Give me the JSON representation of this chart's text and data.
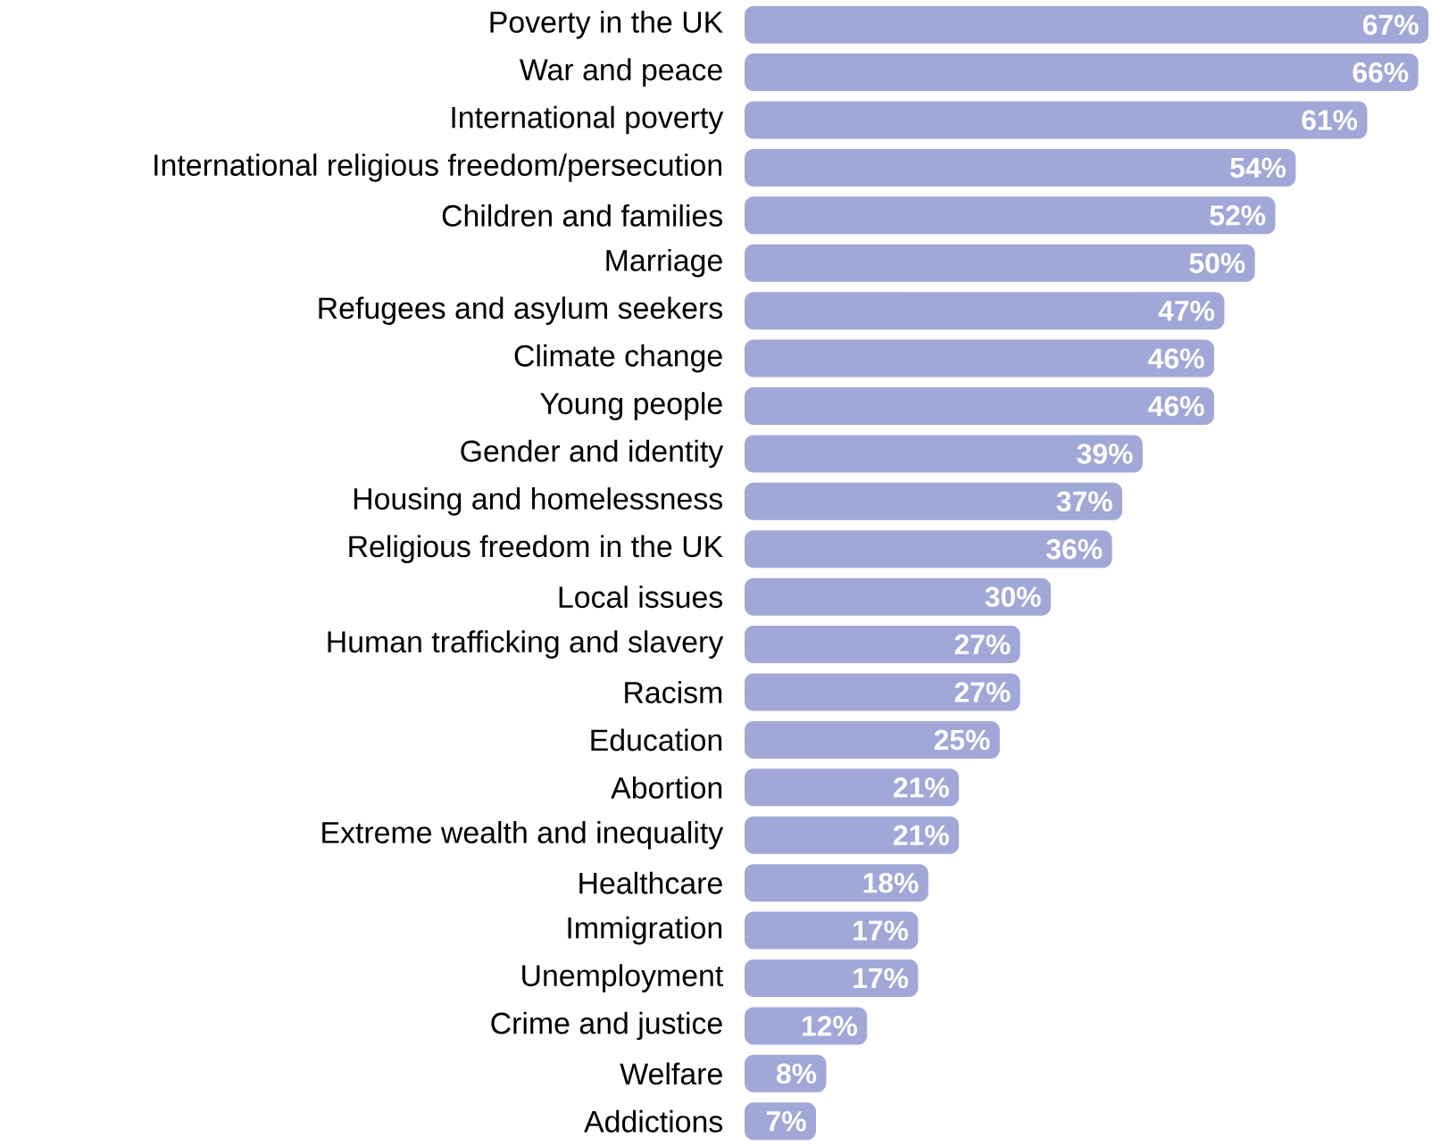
{
  "chart_data": {
    "type": "bar",
    "orientation": "horizontal",
    "color": "#a1a8d8",
    "categories": [
      "Poverty in the UK",
      "War and peace",
      "International poverty",
      "International religious freedom/persecution",
      "Children and families",
      "Marriage",
      "Refugees and asylum seekers",
      "Climate change",
      "Young people",
      "Gender and identity",
      "Housing and homelessness",
      "Religious freedom in the UK",
      "Local issues",
      "Human trafficking and slavery",
      "Racism",
      "Education",
      "Abortion",
      "Extreme wealth and inequality",
      "Healthcare",
      "Immigration",
      "Unemployment",
      "Crime and justice",
      "Welfare",
      "Addictions"
    ],
    "values": [
      67,
      66,
      61,
      54,
      52,
      50,
      47,
      46,
      46,
      39,
      37,
      36,
      30,
      27,
      27,
      25,
      21,
      21,
      18,
      17,
      17,
      12,
      8,
      7
    ],
    "value_labels": [
      "67%",
      "66%",
      "61%",
      "54%",
      "52%",
      "50%",
      "47%",
      "46%",
      "46%",
      "39%",
      "37%",
      "36%",
      "30%",
      "27%",
      "27%",
      "25%",
      "21%",
      "21%",
      "18%",
      "17%",
      "17%",
      "12%",
      "8%",
      "7%"
    ]
  }
}
